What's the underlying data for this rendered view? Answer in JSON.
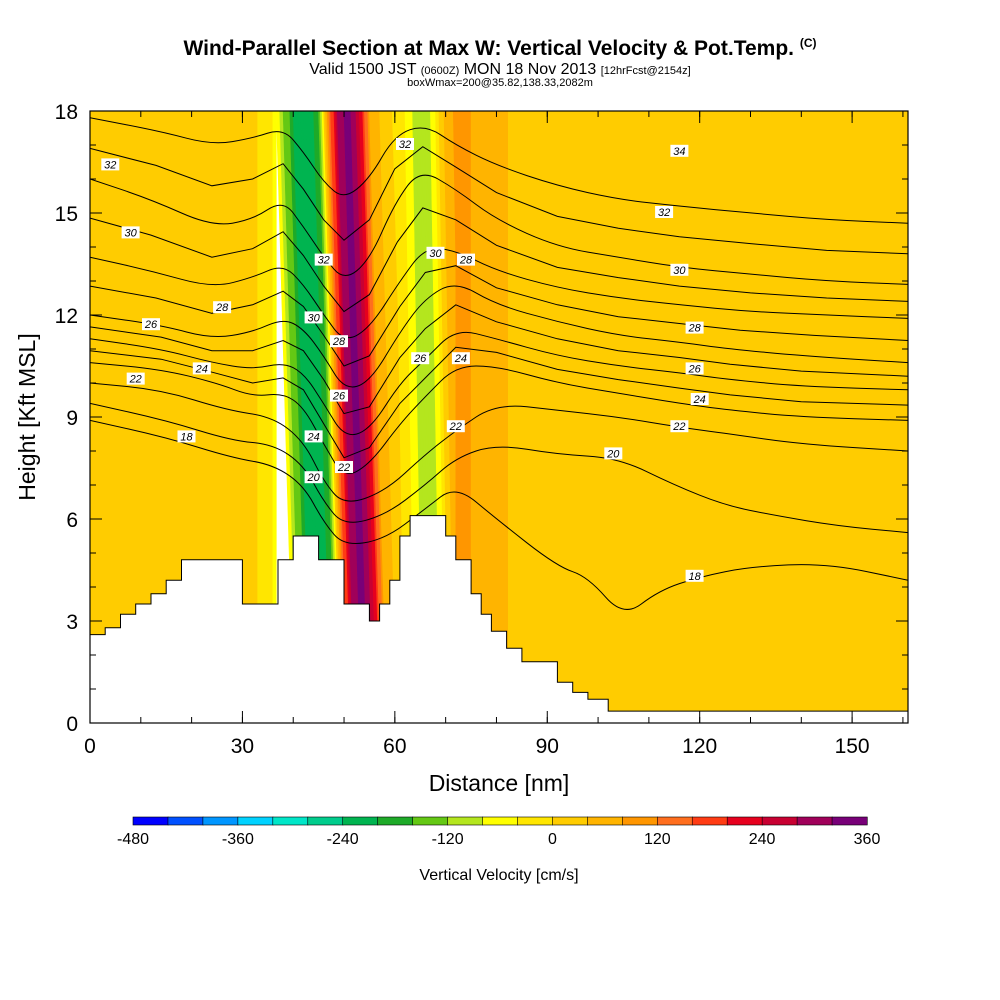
{
  "chart_data": {
    "type": "heatmap",
    "title": "Wind-Parallel Section at Max W: Vertical Velocity & Pot.Temp.",
    "title_suffix": "(C)",
    "subtitle_prefix": "Valid 1500 JST",
    "subtitle_utc": "(0600Z)",
    "subtitle_date": "MON 18 Nov 2013",
    "subtitle_fcst": "[12hrFcst@2154z]",
    "subtitle2": "boxWmax=200@35.82,138.33,2082m",
    "xlabel": "Distance [nm]",
    "ylabel": "Height [Kft MSL]",
    "xlim": [
      0,
      161
    ],
    "ylim": [
      0,
      18
    ],
    "x_ticks": [
      0,
      30,
      60,
      90,
      120,
      150
    ],
    "y_ticks": [
      0,
      3,
      6,
      9,
      12,
      15,
      18
    ],
    "colorbar": {
      "label": "Vertical Velocity [cm/s]",
      "min": -480,
      "max": 360,
      "step": 40,
      "tick_values": [
        -480,
        -360,
        -240,
        -120,
        0,
        120,
        240,
        360
      ],
      "colors": [
        "#0000ff",
        "#0050ff",
        "#0096ff",
        "#00d2ff",
        "#00e6c8",
        "#00cc8c",
        "#00b450",
        "#1eaa28",
        "#64c814",
        "#b4e61e",
        "#ffff00",
        "#ffe600",
        "#ffcc00",
        "#ffb400",
        "#ff9600",
        "#ff6e1e",
        "#ff3c14",
        "#e6001e",
        "#c80032",
        "#a0005a",
        "#780078"
      ]
    },
    "terrain_kft": [
      [
        0,
        2.6
      ],
      [
        3,
        2.8
      ],
      [
        6,
        3.2
      ],
      [
        9,
        3.5
      ],
      [
        12,
        3.8
      ],
      [
        15,
        4.2
      ],
      [
        18,
        4.8
      ],
      [
        24,
        4.8
      ],
      [
        29,
        4.8
      ],
      [
        30,
        3.5
      ],
      [
        34,
        3.5
      ],
      [
        36,
        3.5
      ],
      [
        37,
        4.8
      ],
      [
        40,
        5.5
      ],
      [
        43,
        5.5
      ],
      [
        45,
        4.8
      ],
      [
        48,
        4.8
      ],
      [
        50,
        3.5
      ],
      [
        53,
        3.5
      ],
      [
        55,
        3.0
      ],
      [
        57,
        3.5
      ],
      [
        59,
        4.2
      ],
      [
        61,
        5.5
      ],
      [
        63,
        6.1
      ],
      [
        67,
        6.1
      ],
      [
        70,
        5.5
      ],
      [
        72,
        4.8
      ],
      [
        75,
        3.8
      ],
      [
        77,
        3.2
      ],
      [
        79,
        2.7
      ],
      [
        82,
        2.2
      ],
      [
        85,
        1.8
      ],
      [
        89,
        1.8
      ],
      [
        92,
        1.2
      ],
      [
        95,
        0.9
      ],
      [
        98,
        0.7
      ],
      [
        102,
        0.35
      ],
      [
        161,
        0.35
      ]
    ],
    "w_shading": [
      {
        "x": 0,
        "w": 10
      },
      {
        "x": 20,
        "w": 20
      },
      {
        "x": 27,
        "w": 30
      },
      {
        "x": 30,
        "w": 20
      },
      {
        "x": 33,
        "w": 0
      },
      {
        "x": 36,
        "w": -40
      },
      {
        "x": 40,
        "w": -200
      },
      {
        "x": 43,
        "w": -240
      },
      {
        "x": 45,
        "w": -160
      },
      {
        "x": 47,
        "w": 120
      },
      {
        "x": 49,
        "w": 300
      },
      {
        "x": 51,
        "w": 340
      },
      {
        "x": 53,
        "w": 240
      },
      {
        "x": 55,
        "w": 80
      },
      {
        "x": 58,
        "w": 20
      },
      {
        "x": 61,
        "w": -20
      },
      {
        "x": 64,
        "w": -100
      },
      {
        "x": 66,
        "w": -120
      },
      {
        "x": 68,
        "w": -40
      },
      {
        "x": 70,
        "w": 60
      },
      {
        "x": 73,
        "w": 100
      },
      {
        "x": 77,
        "w": 60
      },
      {
        "x": 85,
        "w": 30
      },
      {
        "x": 100,
        "w": 15
      },
      {
        "x": 120,
        "w": 20
      },
      {
        "x": 140,
        "w": 30
      },
      {
        "x": 161,
        "w": 20
      }
    ],
    "theta_contours": [
      {
        "value": 18,
        "points": [
          [
            0,
            8.9
          ],
          [
            15,
            8.4
          ],
          [
            28,
            7.8
          ],
          [
            36,
            7.6
          ],
          [
            42,
            7.0
          ],
          [
            46,
            5.9
          ],
          [
            50,
            5.2
          ],
          [
            58,
            5.4
          ],
          [
            66,
            6.3
          ],
          [
            72,
            7.0
          ],
          [
            80,
            6.0
          ],
          [
            92,
            4.6
          ],
          [
            98,
            4.3
          ],
          [
            105,
            3.1
          ],
          [
            112,
            3.9
          ],
          [
            120,
            4.3
          ],
          [
            130,
            4.6
          ],
          [
            145,
            4.7
          ],
          [
            161,
            4.2
          ]
        ]
      },
      {
        "value": 20,
        "points": [
          [
            0,
            9.4
          ],
          [
            15,
            8.9
          ],
          [
            28,
            8.3
          ],
          [
            36,
            8.2
          ],
          [
            42,
            7.6
          ],
          [
            46,
            6.5
          ],
          [
            50,
            5.8
          ],
          [
            58,
            6.1
          ],
          [
            66,
            7.0
          ],
          [
            72,
            7.8
          ],
          [
            80,
            8.2
          ],
          [
            92,
            7.9
          ],
          [
            104,
            7.8
          ],
          [
            115,
            7.0
          ],
          [
            125,
            6.4
          ],
          [
            135,
            6.1
          ],
          [
            147,
            5.8
          ],
          [
            161,
            5.6
          ]
        ]
      },
      {
        "value": 22,
        "points": [
          [
            0,
            10.0
          ],
          [
            14,
            9.8
          ],
          [
            27,
            9.2
          ],
          [
            36,
            9.0
          ],
          [
            42,
            8.3
          ],
          [
            46,
            7.1
          ],
          [
            50,
            6.4
          ],
          [
            58,
            6.8
          ],
          [
            66,
            7.9
          ],
          [
            72,
            8.6
          ],
          [
            80,
            9.4
          ],
          [
            92,
            9.2
          ],
          [
            104,
            9.0
          ],
          [
            116,
            8.7
          ],
          [
            126,
            8.5
          ],
          [
            140,
            8.2
          ],
          [
            161,
            8.0
          ]
        ]
      },
      {
        "value": 24,
        "points": [
          [
            0,
            10.6
          ],
          [
            14,
            10.4
          ],
          [
            25,
            10.0
          ],
          [
            32,
            9.6
          ],
          [
            38,
            9.7
          ],
          [
            42,
            9.3
          ],
          [
            46,
            8.2
          ],
          [
            50,
            7.2
          ],
          [
            55,
            7.6
          ],
          [
            61,
            8.8
          ],
          [
            66,
            9.6
          ],
          [
            72,
            10.5
          ],
          [
            80,
            10.5
          ],
          [
            92,
            10.0
          ],
          [
            104,
            9.7
          ],
          [
            116,
            9.4
          ],
          [
            126,
            9.2
          ],
          [
            140,
            9.0
          ],
          [
            161,
            8.9
          ]
        ]
      },
      {
        "value": 26,
        "points": [
          [
            0,
            11.3
          ],
          [
            14,
            11.0
          ],
          [
            24,
            10.6
          ],
          [
            32,
            10.4
          ],
          [
            38,
            10.6
          ],
          [
            42,
            10.3
          ],
          [
            46,
            9.4
          ],
          [
            50,
            8.4
          ],
          [
            55,
            8.6
          ],
          [
            61,
            10.0
          ],
          [
            66,
            10.7
          ],
          [
            72,
            11.6
          ],
          [
            80,
            11.3
          ],
          [
            92,
            10.8
          ],
          [
            104,
            10.5
          ],
          [
            116,
            10.3
          ],
          [
            126,
            10.1
          ],
          [
            140,
            9.9
          ],
          [
            161,
            9.8
          ]
        ]
      },
      {
        "value": 28,
        "points": [
          [
            0,
            12.0
          ],
          [
            14,
            11.7
          ],
          [
            24,
            11.3
          ],
          [
            32,
            11.5
          ],
          [
            38,
            11.9
          ],
          [
            42,
            11.6
          ],
          [
            46,
            10.8
          ],
          [
            50,
            9.8
          ],
          [
            55,
            10.0
          ],
          [
            61,
            11.5
          ],
          [
            66,
            12.5
          ],
          [
            72,
            13.0
          ],
          [
            80,
            12.3
          ],
          [
            92,
            11.8
          ],
          [
            104,
            11.4
          ],
          [
            116,
            11.2
          ],
          [
            126,
            11.0
          ],
          [
            140,
            10.8
          ],
          [
            161,
            10.6
          ]
        ]
      },
      {
        "value": 30,
        "points": [
          [
            0,
            13.7
          ],
          [
            12,
            13.3
          ],
          [
            24,
            12.8
          ],
          [
            32,
            13.1
          ],
          [
            38,
            13.5
          ],
          [
            42,
            12.9
          ],
          [
            46,
            12.0
          ],
          [
            50,
            11.2
          ],
          [
            55,
            11.6
          ],
          [
            61,
            13.0
          ],
          [
            66,
            14.0
          ],
          [
            72,
            13.9
          ],
          [
            80,
            13.3
          ],
          [
            92,
            12.8
          ],
          [
            104,
            12.5
          ],
          [
            116,
            12.3
          ],
          [
            130,
            12.1
          ],
          [
            145,
            12.0
          ],
          [
            161,
            11.9
          ]
        ]
      },
      {
        "value": 32,
        "points": [
          [
            0,
            16.0
          ],
          [
            12,
            15.4
          ],
          [
            24,
            14.6
          ],
          [
            32,
            14.8
          ],
          [
            38,
            15.4
          ],
          [
            42,
            14.6
          ],
          [
            46,
            13.7
          ],
          [
            50,
            13.0
          ],
          [
            55,
            13.6
          ],
          [
            60,
            15.3
          ],
          [
            65,
            16.3
          ],
          [
            72,
            15.7
          ],
          [
            80,
            14.8
          ],
          [
            92,
            14.0
          ],
          [
            104,
            13.7
          ],
          [
            116,
            13.4
          ],
          [
            130,
            13.2
          ],
          [
            145,
            13.0
          ],
          [
            161,
            12.9
          ]
        ]
      },
      {
        "value": 34,
        "points": [
          [
            0,
            17.8
          ],
          [
            14,
            17.4
          ],
          [
            24,
            17.0
          ],
          [
            32,
            17.2
          ],
          [
            38,
            17.5
          ],
          [
            42,
            16.8
          ],
          [
            46,
            15.9
          ],
          [
            50,
            15.4
          ],
          [
            55,
            16.0
          ],
          [
            60,
            17.3
          ],
          [
            66,
            17.6
          ],
          [
            72,
            17.0
          ],
          [
            80,
            16.4
          ],
          [
            92,
            15.8
          ],
          [
            104,
            15.4
          ],
          [
            116,
            15.2
          ],
          [
            130,
            15.0
          ],
          [
            145,
            14.8
          ],
          [
            161,
            14.7
          ]
        ]
      }
    ],
    "contour_labels": [
      {
        "text": "32",
        "x": 4,
        "y": 16.4
      },
      {
        "text": "30",
        "x": 8,
        "y": 14.4
      },
      {
        "text": "28",
        "x": 26,
        "y": 12.2
      },
      {
        "text": "26",
        "x": 12,
        "y": 11.7
      },
      {
        "text": "24",
        "x": 22,
        "y": 10.4
      },
      {
        "text": "22",
        "x": 9,
        "y": 10.1
      },
      {
        "text": "18",
        "x": 19,
        "y": 8.4
      },
      {
        "text": "32",
        "x": 46,
        "y": 13.6
      },
      {
        "text": "30",
        "x": 44,
        "y": 11.9
      },
      {
        "text": "28",
        "x": 49,
        "y": 11.2
      },
      {
        "text": "26",
        "x": 49,
        "y": 9.6
      },
      {
        "text": "24",
        "x": 44,
        "y": 8.4
      },
      {
        "text": "20",
        "x": 44,
        "y": 7.2
      },
      {
        "text": "22",
        "x": 50,
        "y": 7.5
      },
      {
        "text": "32",
        "x": 62,
        "y": 17.0
      },
      {
        "text": "30",
        "x": 68,
        "y": 13.8
      },
      {
        "text": "28",
        "x": 74,
        "y": 13.6
      },
      {
        "text": "26",
        "x": 65,
        "y": 10.7
      },
      {
        "text": "24",
        "x": 73,
        "y": 10.7
      },
      {
        "text": "22",
        "x": 72,
        "y": 8.7
      },
      {
        "text": "34",
        "x": 116,
        "y": 16.8
      },
      {
        "text": "32",
        "x": 113,
        "y": 15.0
      },
      {
        "text": "30",
        "x": 116,
        "y": 13.3
      },
      {
        "text": "28",
        "x": 119,
        "y": 11.6
      },
      {
        "text": "26",
        "x": 119,
        "y": 10.4
      },
      {
        "text": "24",
        "x": 120,
        "y": 9.5
      },
      {
        "text": "22",
        "x": 116,
        "y": 8.7
      },
      {
        "text": "20",
        "x": 103,
        "y": 7.9
      },
      {
        "text": "18",
        "x": 119,
        "y": 4.3
      }
    ]
  }
}
